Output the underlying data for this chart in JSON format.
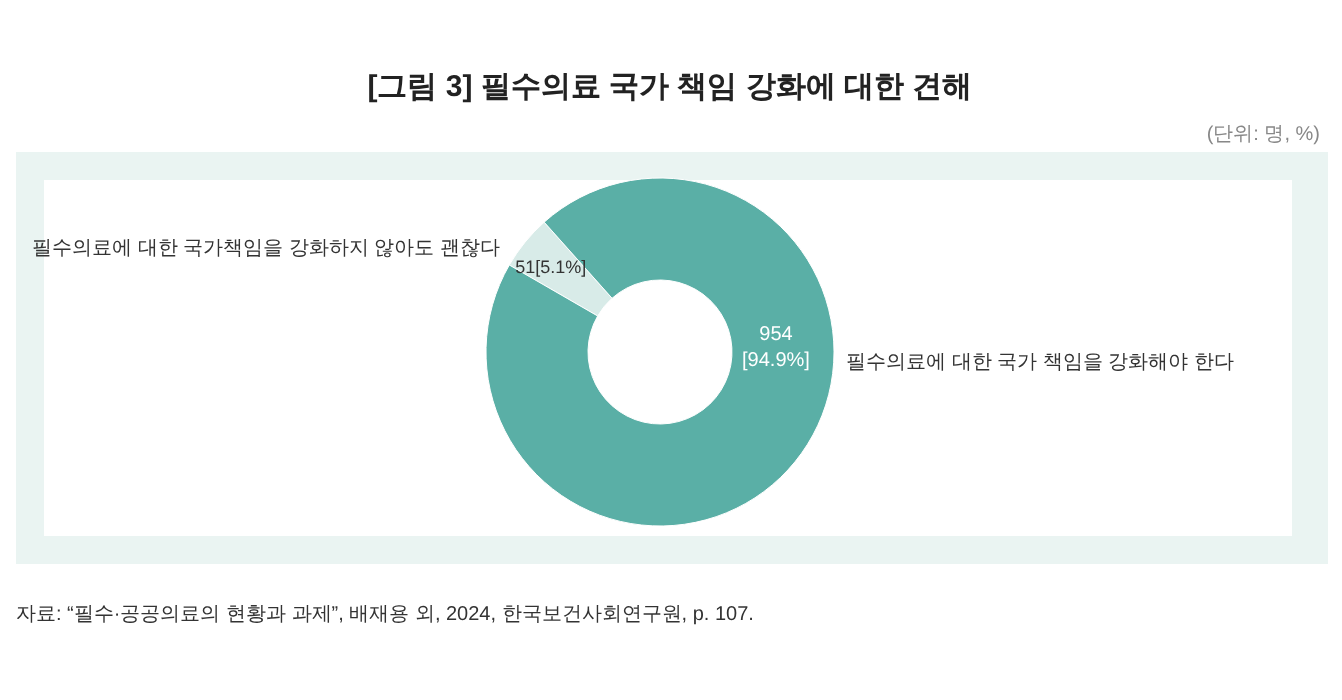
{
  "chart_data": {
    "type": "donut",
    "title": "[그림 3] 필수의료 국가 책임 강화에 대한 견해",
    "subtitle": "(단위: 명, %)",
    "categories": [
      "필수의료에 대한 국가책임을 강화하지 않아도 괜찮다",
      "필수의료에 대한 국가 책임을 강화해야 한다"
    ],
    "values": [
      51,
      954
    ],
    "colors": [
      "#d8ebe8",
      "#5aafa6"
    ],
    "value_labels": [
      "51[5.1%]",
      "954\n[94.9%]"
    ],
    "annotations": [
      "자료: “필수·공공의료의 현황과 과제”, 배재용 외, 2024, 한국보건사회연구원, p. 107."
    ]
  }
}
